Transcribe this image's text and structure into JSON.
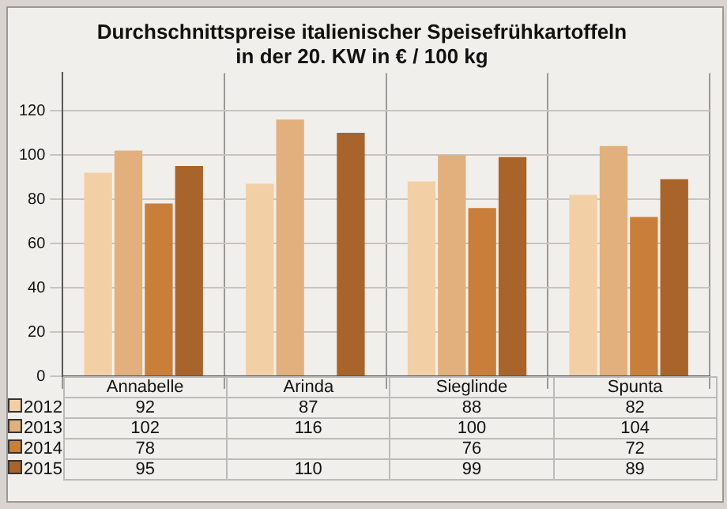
{
  "chart_data": {
    "type": "bar",
    "title": "Durchschnittspreise italienischer Speisefrühkartoffeln\nin der 20. KW in € / 100 kg",
    "categories": [
      "Annabelle",
      "Arinda",
      "Sieglinde",
      "Spunta"
    ],
    "series": [
      {
        "name": "2012",
        "color": "#f3cfa6",
        "values": [
          92,
          87,
          88,
          82
        ]
      },
      {
        "name": "2013",
        "color": "#e2b07c",
        "values": [
          102,
          116,
          100,
          104
        ]
      },
      {
        "name": "2014",
        "color": "#c97f3a",
        "values": [
          78,
          null,
          76,
          72
        ]
      },
      {
        "name": "2015",
        "color": "#a8642a",
        "values": [
          95,
          110,
          99,
          89
        ]
      }
    ],
    "ylim": [
      0,
      137
    ],
    "yticks": [
      0,
      20,
      40,
      60,
      80,
      100,
      120
    ],
    "grid": true,
    "legend": "bottom left",
    "data_labels": true
  }
}
